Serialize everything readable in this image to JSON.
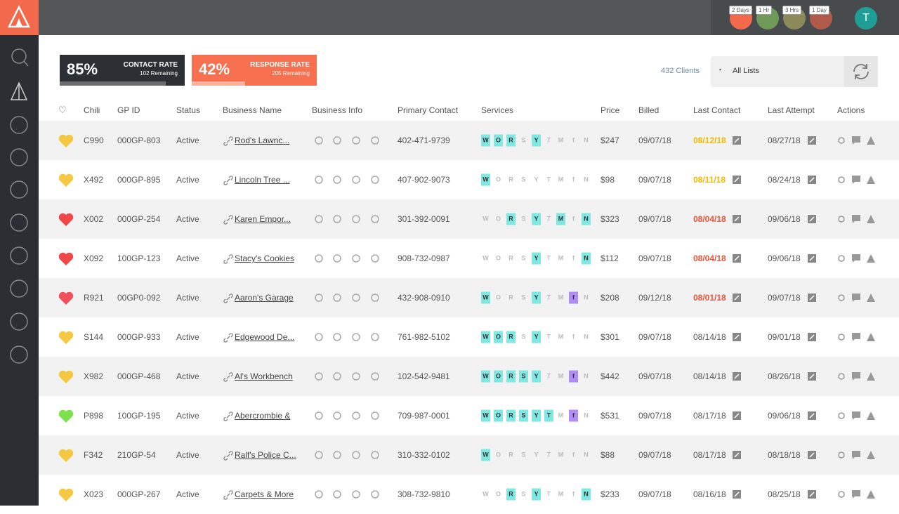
{
  "topbar": {
    "badges": [
      {
        "label": "2 Days",
        "color": "#f26a4b"
      },
      {
        "label": "1 Hr",
        "color": "#6f9a58"
      },
      {
        "label": "3 Hrs",
        "color": "#8c8a5a"
      },
      {
        "label": "1 Day",
        "color": "#b05a4a"
      }
    ],
    "avatar": "T"
  },
  "stats": [
    {
      "value": "85%",
      "label": "CONTACT RATE",
      "sub": "102 Remaining"
    },
    {
      "value": "42%",
      "label": "RESPONSE RATE",
      "sub": "205 Remaining"
    }
  ],
  "clients": "432 Clients",
  "list_select": "All Lists",
  "table": {
    "headers": [
      "Chili",
      "GP ID",
      "Status",
      "Business Name",
      "Business Info",
      "Primary Contact",
      "Services",
      "Price",
      "Billed",
      "Last Contact",
      "Last Attempt",
      "Actions"
    ],
    "services_letters": [
      "W",
      "O",
      "R",
      "S",
      "Y",
      "T",
      "M",
      "f",
      "N"
    ],
    "rows": [
      {
        "heart_color": "#f5c842",
        "chili": "C990",
        "gpid": "000GP-803",
        "status": "Active",
        "business": "Rod's Lawnc...",
        "phone": "402-471-9739",
        "services": [
          true,
          true,
          true,
          false,
          true,
          false,
          false,
          false,
          false
        ],
        "price": "$247",
        "billed": "09/07/18",
        "last_contact": "08/12/18",
        "last_contact_color": "#f5b800",
        "last_attempt": "08/27/18"
      },
      {
        "heart_color": "#f5c842",
        "chili": "X492",
        "gpid": "000GP-895",
        "status": "Active",
        "business": "Lincoln Tree ...",
        "phone": "407-902-9073",
        "services": [
          true,
          false,
          false,
          false,
          false,
          false,
          false,
          false,
          false
        ],
        "price": "$98",
        "billed": "09/07/18",
        "last_contact": "08/11/18",
        "last_contact_color": "#f5b800",
        "last_attempt": "08/24/18"
      },
      {
        "heart_color": "#f04848",
        "chili": "X002",
        "gpid": "000GP-254",
        "status": "Active",
        "business": "Karen Empor...",
        "phone": "301-392-0091",
        "services": [
          false,
          false,
          true,
          false,
          true,
          false,
          true,
          false,
          true
        ],
        "price": "$323",
        "billed": "09/07/18",
        "last_contact": "08/04/18",
        "last_contact_color": "#f0533a",
        "last_attempt": "09/06/18"
      },
      {
        "heart_color": "#f04848",
        "chili": "X092",
        "gpid": "100GP-123",
        "status": "Active",
        "business": "Stacy's Cookies",
        "phone": "908-732-0987",
        "services": [
          false,
          false,
          false,
          false,
          true,
          false,
          false,
          false,
          true
        ],
        "price": "$112",
        "billed": "09/07/18",
        "last_contact": "08/04/18",
        "last_contact_color": "#f0533a",
        "last_attempt": "09/06/18"
      },
      {
        "heart_color": "#f0505a",
        "chili": "R921",
        "gpid": "00GP0-092",
        "status": "Active",
        "business": "Aaron's Garage",
        "phone": "432-908-0910",
        "services": [
          true,
          false,
          false,
          false,
          true,
          false,
          false,
          true,
          false
        ],
        "price": "$208",
        "billed": "09/12/18",
        "last_contact": "08/01/18",
        "last_contact_color": "#f0533a",
        "last_attempt": "09/07/18"
      },
      {
        "heart_color": "#f5c842",
        "chili": "S144",
        "gpid": "000GP-933",
        "status": "Active",
        "business": "Edgewood De...",
        "phone": "761-982-5102",
        "services": [
          true,
          true,
          true,
          false,
          true,
          false,
          false,
          false,
          false
        ],
        "price": "$301",
        "billed": "09/07/18",
        "last_contact": "08/14/18",
        "last_contact_color": "#555555",
        "last_attempt": "09/01/18"
      },
      {
        "heart_color": "#f5c842",
        "chili": "X982",
        "gpid": "000GP-468",
        "status": "Active",
        "business": "Al's Workbench",
        "phone": "102-542-9481",
        "services": [
          true,
          true,
          true,
          true,
          true,
          false,
          false,
          true,
          false
        ],
        "price": "$442",
        "billed": "09/07/18",
        "last_contact": "08/14/18",
        "last_contact_color": "#555555",
        "last_attempt": "08/26/18"
      },
      {
        "heart_color": "#7ee04a",
        "chili": "P898",
        "gpid": "100GP-195",
        "status": "Active",
        "business": "Abercrombie &",
        "phone": "709-987-0001",
        "services": [
          true,
          true,
          true,
          true,
          true,
          true,
          false,
          true,
          false
        ],
        "price": "$531",
        "billed": "09/07/18",
        "last_contact": "08/17/18",
        "last_contact_color": "#555555",
        "last_attempt": "09/06/18"
      },
      {
        "heart_color": "#f5c842",
        "chili": "F342",
        "gpid": "210GP-54",
        "status": "Active",
        "business": "Ralf's Police C...",
        "phone": "310-332-0102",
        "services": [
          true,
          false,
          false,
          false,
          false,
          false,
          false,
          false,
          false
        ],
        "price": "$88",
        "billed": "09/07/18",
        "last_contact": "08/17/18",
        "last_contact_color": "#555555",
        "last_attempt": "08/18/18"
      },
      {
        "heart_color": "#f5c842",
        "chili": "X023",
        "gpid": "000GP-267",
        "status": "Active",
        "business": "Carpets & More",
        "phone": "308-732-9810",
        "services": [
          false,
          false,
          true,
          false,
          true,
          false,
          false,
          false,
          true
        ],
        "price": "$233",
        "billed": "09/07/18",
        "last_contact": "08/16/18",
        "last_contact_color": "#555555",
        "last_attempt": "08/25/18"
      }
    ]
  }
}
